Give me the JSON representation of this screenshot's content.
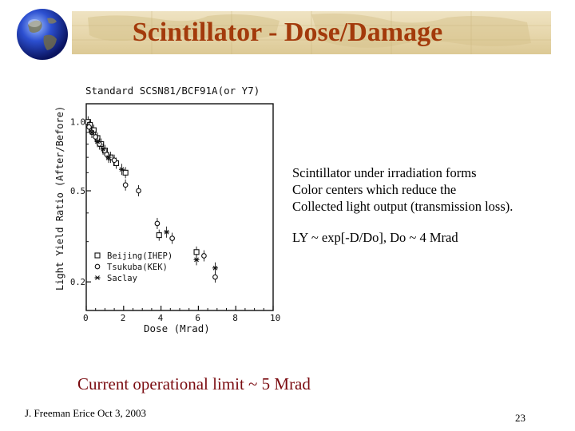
{
  "slide": {
    "title": "Scintillator - Dose/Damage",
    "page_number": "23",
    "footer": "J. Freeman  Erice  Oct 3, 2003",
    "limit_text": "Current operational limit ~ 5  Mrad",
    "description_lines": [
      "Scintillator under irradiation forms",
      "Color centers which reduce the",
      "Collected light output (transmission loss)."
    ],
    "formula": "LY ~ exp[-D/Do], Do ~ 4 Mrad"
  },
  "colors": {
    "title": "#a33a0b",
    "limit_text": "#7a0b10",
    "banner": "#e6d6ab"
  },
  "icons": {
    "logo": "globe-icon"
  },
  "chart_data": {
    "type": "scatter",
    "title": "Standard SCSN81/BCF91A(or Y7)",
    "xlabel": "Dose (Mrad)",
    "ylabel": "Light Yield Ratio (After/Before)",
    "xlim": [
      0,
      10
    ],
    "ylim": [
      0.15,
      1.2
    ],
    "yscale": "log",
    "xticks": [
      "0",
      "2",
      "4",
      "6",
      "8",
      "10"
    ],
    "yticks": [
      "1.0",
      "0.5",
      "0.2"
    ],
    "legend_position": "bottom-left",
    "series": [
      {
        "name": "Beijing(IHEP)",
        "marker": "square",
        "x": [
          0.1,
          0.2,
          0.4,
          0.6,
          0.8,
          1.0,
          1.3,
          1.6,
          2.1,
          3.9,
          5.9
        ],
        "y": [
          1.0,
          0.97,
          0.92,
          0.85,
          0.8,
          0.75,
          0.7,
          0.66,
          0.6,
          0.32,
          0.27
        ]
      },
      {
        "name": "Tsukuba(KEK)",
        "marker": "circle",
        "x": [
          0.15,
          0.3,
          0.5,
          0.7,
          1.1,
          1.5,
          2.1,
          2.8,
          3.8,
          4.6,
          6.3,
          6.9
        ],
        "y": [
          0.95,
          0.9,
          0.86,
          0.8,
          0.72,
          0.68,
          0.53,
          0.5,
          0.36,
          0.31,
          0.26,
          0.21
        ]
      },
      {
        "name": "Saclay",
        "marker": "asterisk",
        "x": [
          0.3,
          0.6,
          0.9,
          1.2,
          1.9,
          4.3,
          5.9,
          6.9
        ],
        "y": [
          0.9,
          0.82,
          0.76,
          0.7,
          0.62,
          0.33,
          0.25,
          0.23
        ]
      }
    ]
  }
}
